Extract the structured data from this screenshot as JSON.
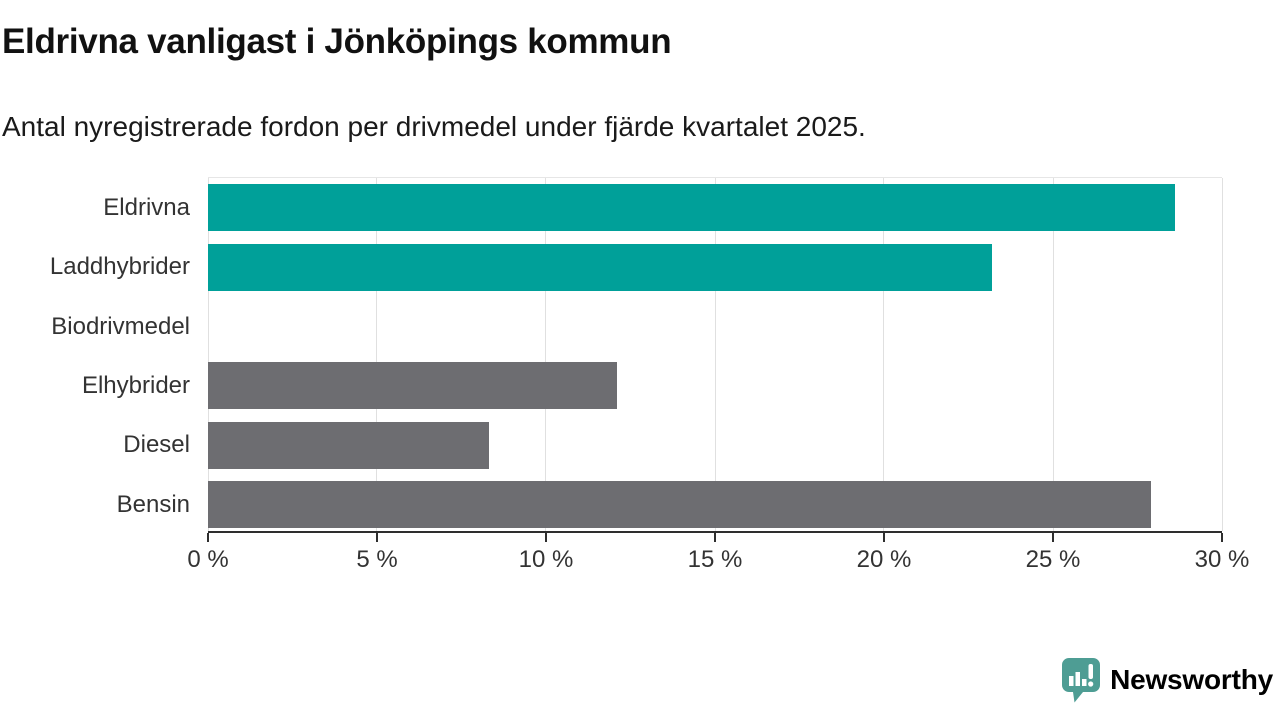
{
  "header": {
    "title": "Eldrivna vanligast i Jönköpings kommun",
    "subtitle": "Antal nyregistrerade fordon per drivmedel under fjärde kvartalet 2025."
  },
  "chart_data": {
    "type": "bar",
    "orientation": "horizontal",
    "title": "Eldrivna vanligast i Jönköpings kommun",
    "subtitle": "Antal nyregistrerade fordon per drivmedel under fjärde kvartalet 2025.",
    "categories": [
      "Eldrivna",
      "Laddhybrider",
      "Biodrivmedel",
      "Elhybrider",
      "Diesel",
      "Bensin"
    ],
    "values": [
      28.6,
      23.2,
      0,
      12.1,
      8.3,
      27.9
    ],
    "unit": "%",
    "bar_colors": [
      "#00A099",
      "#00A099",
      "#6D6D71",
      "#6D6D71",
      "#6D6D71",
      "#6D6D71"
    ],
    "xlim": [
      0,
      30
    ],
    "x_ticks": [
      0,
      5,
      10,
      15,
      20,
      25,
      30
    ],
    "x_tick_labels": [
      "0 %",
      "5 %",
      "10 %",
      "15 %",
      "20 %",
      "25 %",
      "30 %"
    ],
    "grid": true,
    "legend": "none",
    "accent_color": "#00A099",
    "neutral_color": "#6D6D71",
    "gridline_color": "#e0e0e0",
    "axis_color": "#2e2e2e"
  },
  "footer": {
    "brand": "Newsworthy",
    "brand_color": "#4E9D94",
    "logo_icon": "speech-bubble-bar-chart-exclamation"
  }
}
